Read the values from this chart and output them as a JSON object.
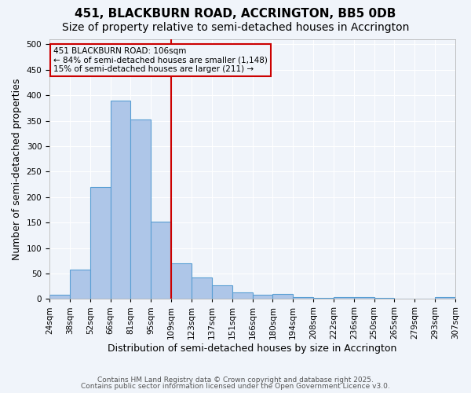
{
  "title": "451, BLACKBURN ROAD, ACCRINGTON, BB5 0DB",
  "subtitle": "Size of property relative to semi-detached houses in Accrington",
  "xlabel": "Distribution of semi-detached houses by size in Accrington",
  "ylabel": "Number of semi-detached properties",
  "footnote1": "Contains HM Land Registry data © Crown copyright and database right 2025.",
  "footnote2": "Contains public sector information licensed under the Open Government Licence v3.0.",
  "bins": [
    "24sqm",
    "38sqm",
    "52sqm",
    "66sqm",
    "81sqm",
    "95sqm",
    "109sqm",
    "123sqm",
    "137sqm",
    "151sqm",
    "166sqm",
    "180sqm",
    "194sqm",
    "208sqm",
    "222sqm",
    "236sqm",
    "250sqm",
    "265sqm",
    "279sqm",
    "293sqm",
    "307sqm"
  ],
  "values": [
    8,
    58,
    220,
    390,
    352,
    152,
    70,
    42,
    27,
    13,
    8,
    9,
    4,
    2,
    4,
    3,
    2,
    1,
    1,
    3
  ],
  "bar_color": "#aec6e8",
  "bar_edge_color": "#5a9fd4",
  "property_line_color": "#cc0000",
  "annotation_box_text": "451 BLACKBURN ROAD: 106sqm\n← 84% of semi-detached houses are smaller (1,148)\n15% of semi-detached houses are larger (211) →",
  "annotation_box_color": "#cc0000",
  "ylim": [
    0,
    510
  ],
  "yticks": [
    0,
    50,
    100,
    150,
    200,
    250,
    300,
    350,
    400,
    450,
    500
  ],
  "background_color": "#f0f4fa",
  "grid_color": "#ffffff",
  "title_fontsize": 11,
  "subtitle_fontsize": 10,
  "axis_fontsize": 9,
  "tick_fontsize": 7.5,
  "footnote_fontsize": 6.5
}
